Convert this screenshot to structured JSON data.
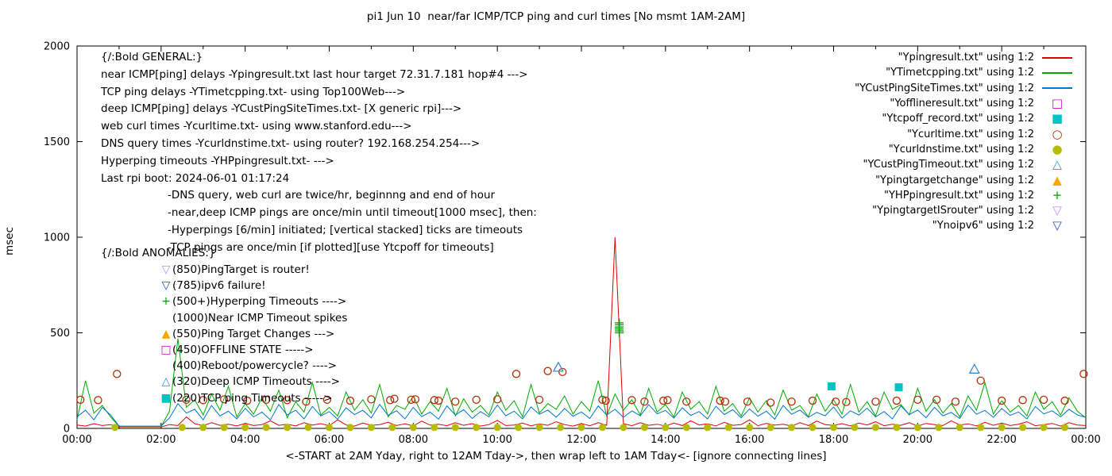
{
  "chart_data": {
    "type": "line",
    "title": "pi1 Jun 10  near/far ICMP/TCP ping and curl times [No msmt 1AM-2AM]",
    "xlabel": "<-START at 2AM Yday, right to 12AM Tday->, then wrap left to 1AM Tday<- [ignore connecting lines]",
    "ylabel": "msec",
    "xlim": [
      0,
      24
    ],
    "ylim": [
      0,
      2000
    ],
    "grid": false,
    "legend_position": "top-right-inside",
    "xticks": {
      "values": [
        0,
        2,
        4,
        6,
        8,
        10,
        12,
        14,
        16,
        18,
        20,
        22,
        24
      ],
      "labels": [
        "00:00",
        "02:00",
        "04:00",
        "06:00",
        "08:00",
        "10:00",
        "12:00",
        "14:00",
        "16:00",
        "18:00",
        "20:00",
        "22:00",
        "00:00"
      ]
    },
    "yticks": [
      0,
      500,
      1000,
      1500,
      2000
    ],
    "line_series": [
      {
        "name": "Ypingresult.txt",
        "color": "#dd0000",
        "x_start": 0,
        "x_step": 0.2,
        "y": [
          18,
          12,
          25,
          15,
          20,
          8,
          8,
          8,
          8,
          8,
          8,
          20,
          15,
          60,
          25,
          14,
          30,
          16,
          22,
          13,
          26,
          15,
          20,
          40,
          16,
          22,
          13,
          30,
          17,
          25,
          14,
          45,
          18,
          12,
          28,
          16,
          20,
          32,
          15,
          24,
          13,
          38,
          17,
          22,
          14,
          30,
          16,
          25,
          12,
          20,
          42,
          15,
          18,
          28,
          13,
          24,
          16,
          35,
          20,
          12,
          25,
          14,
          30,
          16,
          1000,
          25,
          14,
          30,
          16,
          22,
          12,
          28,
          15,
          40,
          18,
          24,
          13,
          32,
          16,
          20,
          45,
          14,
          26,
          17,
          22,
          12,
          30,
          15,
          38,
          20,
          16,
          25,
          13,
          28,
          18,
          35,
          14,
          22,
          16,
          30,
          12,
          26,
          20,
          15,
          40,
          18,
          24,
          13,
          32,
          16,
          28,
          15,
          22,
          35,
          14,
          20,
          26,
          12,
          30,
          18,
          15
        ]
      },
      {
        "name": "YTimetcpping.txt",
        "color": "#00aa00",
        "x_start": 0,
        "x_step": 0.2,
        "y": [
          45,
          250,
          80,
          120,
          60,
          10,
          10,
          10,
          10,
          10,
          10,
          90,
          470,
          110,
          150,
          70,
          180,
          95,
          220,
          60,
          130,
          75,
          160,
          90,
          200,
          55,
          140,
          85,
          240,
          70,
          110,
          65,
          190,
          95,
          150,
          80,
          230,
          60,
          120,
          100,
          170,
          75,
          140,
          90,
          210,
          65,
          155,
          85,
          120,
          70,
          190,
          95,
          145,
          60,
          230,
          80,
          130,
          100,
          170,
          75,
          140,
          90,
          250,
          65,
          180,
          95,
          150,
          70,
          210,
          85,
          125,
          60,
          190,
          100,
          140,
          75,
          220,
          90,
          130,
          65,
          160,
          85,
          145,
          70,
          200,
          95,
          120,
          60,
          180,
          90,
          150,
          75,
          230,
          85,
          140,
          65,
          190,
          100,
          125,
          70,
          210,
          90,
          150,
          80,
          130,
          60,
          170,
          95,
          240,
          75,
          145,
          85,
          120,
          65,
          190,
          100,
          140,
          70,
          160,
          90,
          55
        ]
      },
      {
        "name": "YCustPingSiteTimes.txt",
        "color": "#0077cc",
        "x_start": 0,
        "x_step": 0.2,
        "y": [
          60,
          95,
          45,
          110,
          70,
          12,
          12,
          12,
          12,
          12,
          12,
          55,
          130,
          80,
          100,
          45,
          120,
          65,
          90,
          50,
          105,
          60,
          85,
          45,
          125,
          70,
          95,
          50,
          115,
          65,
          88,
          48,
          108,
          72,
          95,
          55,
          125,
          68,
          92,
          50,
          110,
          62,
          85,
          48,
          118,
          70,
          98,
          52,
          88,
          60,
          122,
          66,
          90,
          50,
          112,
          74,
          96,
          58,
          104,
          64,
          86,
          52,
          118,
          70,
          100,
          58,
          92,
          66,
          124,
          76,
          94,
          54,
          108,
          68,
          88,
          50,
          116,
          72,
          98,
          56,
          102,
          64,
          90,
          48,
          120,
          74,
          96,
          58,
          84,
          66,
          112,
          54,
          92,
          70,
          106,
          60,
          88,
          50,
          118,
          72,
          96,
          56,
          110,
          66,
          84,
          52,
          122,
          74,
          94,
          58,
          104,
          68,
          86,
          50,
          114,
          76,
          92,
          60,
          100,
          70,
          58
        ]
      }
    ],
    "scatter_series": [
      {
        "name": "Ycurltime.txt",
        "marker": "circle-open",
        "color": "#b03000",
        "size": 4.5,
        "points": [
          [
            0.08,
            150
          ],
          [
            0.5,
            148
          ],
          [
            0.95,
            285
          ],
          [
            2.6,
            150
          ],
          [
            3.0,
            148
          ],
          [
            3.5,
            152
          ],
          [
            4.05,
            145
          ],
          [
            4.5,
            150
          ],
          [
            5.0,
            148
          ],
          [
            5.45,
            140
          ],
          [
            5.95,
            150
          ],
          [
            6.5,
            145
          ],
          [
            7.0,
            152
          ],
          [
            7.45,
            148
          ],
          [
            7.55,
            155
          ],
          [
            7.95,
            150
          ],
          [
            8.05,
            152
          ],
          [
            8.5,
            148
          ],
          [
            8.6,
            145
          ],
          [
            9.0,
            140
          ],
          [
            9.5,
            150
          ],
          [
            10.0,
            152
          ],
          [
            10.45,
            285
          ],
          [
            11.0,
            150
          ],
          [
            11.2,
            300
          ],
          [
            11.55,
            295
          ],
          [
            12.5,
            150
          ],
          [
            12.58,
            145
          ],
          [
            13.2,
            148
          ],
          [
            13.5,
            140
          ],
          [
            13.95,
            145
          ],
          [
            14.05,
            148
          ],
          [
            14.5,
            140
          ],
          [
            15.3,
            145
          ],
          [
            15.42,
            140
          ],
          [
            15.95,
            140
          ],
          [
            16.5,
            135
          ],
          [
            17.0,
            140
          ],
          [
            17.5,
            145
          ],
          [
            18.05,
            140
          ],
          [
            18.3,
            138
          ],
          [
            19.0,
            140
          ],
          [
            19.5,
            145
          ],
          [
            20.0,
            150
          ],
          [
            20.45,
            150
          ],
          [
            20.9,
            140
          ],
          [
            21.5,
            250
          ],
          [
            22.0,
            145
          ],
          [
            22.5,
            148
          ],
          [
            23.0,
            150
          ],
          [
            23.5,
            145
          ],
          [
            23.95,
            285
          ]
        ]
      },
      {
        "name": "Ycurldnstime.txt",
        "marker": "circle-filled",
        "color": "#b8bc00",
        "size": 4.5,
        "points": [
          [
            0.9,
            5
          ],
          [
            2.5,
            5
          ],
          [
            3.0,
            5
          ],
          [
            3.5,
            5
          ],
          [
            4.0,
            5
          ],
          [
            4.5,
            5
          ],
          [
            5.0,
            5
          ],
          [
            5.5,
            5
          ],
          [
            6.0,
            5
          ],
          [
            6.5,
            5
          ],
          [
            7.0,
            5
          ],
          [
            7.5,
            5
          ],
          [
            8.0,
            5
          ],
          [
            8.5,
            5
          ],
          [
            9.0,
            5
          ],
          [
            9.5,
            5
          ],
          [
            10.0,
            5
          ],
          [
            10.5,
            5
          ],
          [
            11.0,
            5
          ],
          [
            11.5,
            5
          ],
          [
            12.0,
            5
          ],
          [
            12.5,
            5
          ],
          [
            13.0,
            5
          ],
          [
            13.5,
            5
          ],
          [
            14.0,
            5
          ],
          [
            14.5,
            5
          ],
          [
            15.0,
            5
          ],
          [
            15.5,
            5
          ],
          [
            16.0,
            5
          ],
          [
            16.5,
            5
          ],
          [
            17.0,
            5
          ],
          [
            17.5,
            5
          ],
          [
            18.0,
            5
          ],
          [
            18.5,
            5
          ],
          [
            19.0,
            5
          ],
          [
            19.5,
            5
          ],
          [
            20.0,
            5
          ],
          [
            20.5,
            5
          ],
          [
            21.0,
            5
          ],
          [
            21.5,
            5
          ],
          [
            22.0,
            5
          ],
          [
            22.5,
            5
          ],
          [
            23.0,
            5
          ],
          [
            23.5,
            5
          ]
        ]
      },
      {
        "name": "YCustPingTimeout.txt",
        "marker": "triangle-open",
        "color": "#3a8fd0",
        "size": 5,
        "points": [
          [
            11.45,
            320
          ],
          [
            21.35,
            310
          ]
        ]
      },
      {
        "name": "Ytcpoff_record.txt",
        "marker": "square-filled",
        "color": "#00c4c4",
        "size": 5,
        "points": [
          [
            17.95,
            220
          ],
          [
            19.55,
            215
          ]
        ]
      },
      {
        "name": "YHPpingresult.txt",
        "marker": "plus",
        "color": "#00a000",
        "size": 4.5,
        "points": [
          [
            12.9,
            500
          ],
          [
            12.9,
            510
          ],
          [
            12.9,
            520
          ],
          [
            12.9,
            530
          ],
          [
            12.9,
            542
          ],
          [
            12.9,
            552
          ]
        ]
      }
    ],
    "legend": [
      {
        "label": "\"Ypingresult.txt\" using 1:2",
        "sample": "line",
        "color": "#dd0000"
      },
      {
        "label": "\"YTimetcpping.txt\" using 1:2",
        "sample": "line",
        "color": "#00aa00"
      },
      {
        "label": "\"YCustPingSiteTimes.txt\" using 1:2",
        "sample": "line",
        "color": "#0077cc"
      },
      {
        "label": "\"Yofflineresult.txt\" using 1:2",
        "sample": "marker",
        "marker": "square-open",
        "color": "#cc00cc"
      },
      {
        "label": "\"Ytcpoff_record.txt\" using 1:2",
        "sample": "marker",
        "marker": "square-filled",
        "color": "#00c4c4"
      },
      {
        "label": "\"Ycurltime.txt\" using 1:2",
        "sample": "marker",
        "marker": "circle-open",
        "color": "#b03000"
      },
      {
        "label": "\"Ycurldnstime.txt\" using 1:2",
        "sample": "marker",
        "marker": "circle-filled",
        "color": "#b8bc00"
      },
      {
        "label": "\"YCustPingTimeout.txt\" using 1:2",
        "sample": "marker",
        "marker": "triangle-open",
        "color": "#3a8fd0"
      },
      {
        "label": "\"Ypingtargetchange\" using 1:2",
        "sample": "marker",
        "marker": "triangle-filled",
        "color": "#f5a800"
      },
      {
        "label": "\"YHPpingresult.txt\" using 1:2",
        "sample": "marker",
        "marker": "plus",
        "color": "#00a000"
      },
      {
        "label": "\"YpingtargetISrouter\" using 1:2",
        "sample": "marker",
        "marker": "triangle-down-open",
        "color": "#c58aff"
      },
      {
        "label": "\"Ynoipv6\" using 1:2",
        "sample": "marker",
        "marker": "triangle-down-open",
        "color": "#2a50c8"
      }
    ],
    "annotations": {
      "general": {
        "lines": [
          {
            "text": "{/:Bold GENERAL:}",
            "indent": false
          },
          {
            "text": "near ICMP[ping] delays -Ypingresult.txt last hour target 72.31.7.181 hop#4 --->",
            "indent": false
          },
          {
            "text": "TCP ping delays -YTimetcpping.txt- using Top100Web--->",
            "indent": false
          },
          {
            "text": "deep ICMP[ping] delays -YCustPingSiteTimes.txt- [X generic rpi]--->",
            "indent": false
          },
          {
            "text": "web curl times -Ycurltime.txt- using www.stanford.edu--->",
            "indent": false
          },
          {
            "text": "DNS query times -Ycurldnstime.txt- using router? 192.168.254.254--->",
            "indent": false
          },
          {
            "text": "Hyperping timeouts -YHPpingresult.txt- --->",
            "indent": false
          },
          {
            "text": "Last rpi boot: 2024-06-01 01:17:24",
            "indent": false
          },
          {
            "text": "-DNS query, web curl are twice/hr, beginnng and end of hour",
            "indent": true
          },
          {
            "text": "-near,deep ICMP pings are once/min until timeout[1000 msec], then:",
            "indent": true
          },
          {
            "text": "-Hyperpings [6/min] initiated; [vertical stacked] ticks are timeouts",
            "indent": true
          },
          {
            "text": "-TCP pings are once/min [if plotted][use Ytcpoff for timeouts]",
            "indent": true
          }
        ]
      },
      "anomalies": {
        "header": "{/:Bold ANOMALIES:}",
        "lines": [
          {
            "marker": "triangle-down-open",
            "color": "#c58aff",
            "text": "(850)PingTarget is router!"
          },
          {
            "marker": "triangle-down-open",
            "color": "#2a50c8",
            "text": "(785)ipv6 failure!"
          },
          {
            "marker": "plus",
            "color": "#00a000",
            "text": "(500+)Hyperping Timeouts ---->"
          },
          {
            "marker": null,
            "color": null,
            "text": "(1000)Near ICMP Timeout spikes"
          },
          {
            "marker": "triangle-filled",
            "color": "#f5a800",
            "text": "(550)Ping Target Changes --->"
          },
          {
            "marker": "square-open",
            "color": "#cc00cc",
            "text": "(450)OFFLINE STATE ----->"
          },
          {
            "marker": null,
            "color": null,
            "text": "(400)Reboot/powercycle? ---->"
          },
          {
            "marker": "triangle-open",
            "color": "#3a8fd0",
            "text": "(320)Deep ICMP Timeouts ---->"
          },
          {
            "marker": "square-filled",
            "color": "#00c4c4",
            "text": "(220)TCP ping Timeouts ----->"
          }
        ]
      }
    }
  }
}
